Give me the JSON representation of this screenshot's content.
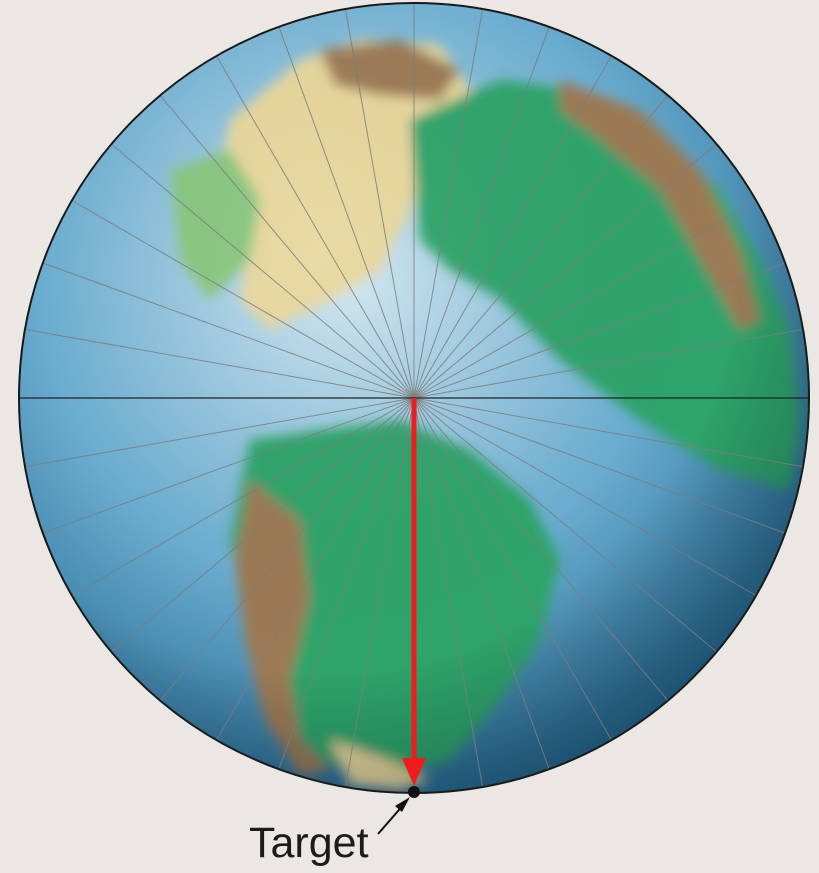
{
  "map": {
    "projection": "azimuthal-equidistant",
    "meridian_count": 36,
    "target_label": "Target",
    "colors": {
      "background": "#ebe8e3",
      "ocean_light": "#cfe6f1",
      "ocean_mid": "#6aaed2",
      "ocean_dark": "#1c5e86",
      "land_green": "#2fa46a",
      "land_light_green": "#86c77d",
      "land_tan": "#e8d79c",
      "land_brown": "#9c7a54",
      "meridian_line": "#7d7d7d",
      "outline": "#1a1a1a",
      "route": "#ee1c1c",
      "target_dot": "#111111"
    }
  }
}
